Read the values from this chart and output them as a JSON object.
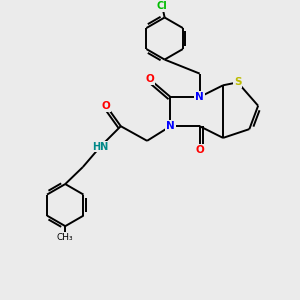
{
  "background_color": "#ebebeb",
  "atom_colors": {
    "C": "#000000",
    "N": "#0000ff",
    "O": "#ff0000",
    "S": "#bbbb00",
    "Cl": "#00bb00",
    "H": "#008888"
  },
  "bond_color": "#000000",
  "bond_width": 1.4,
  "figsize": [
    3.0,
    3.0
  ],
  "dpi": 100
}
